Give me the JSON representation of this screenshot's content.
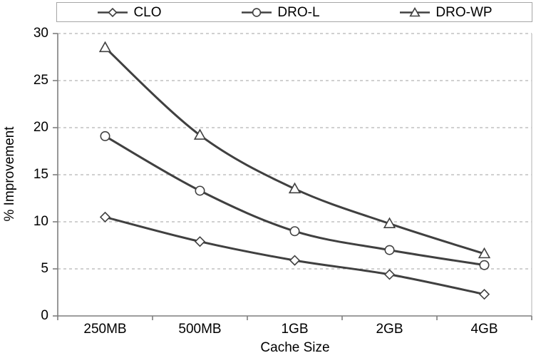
{
  "chart_data": {
    "type": "line",
    "title": "",
    "xlabel": "Cache Size",
    "ylabel": "% Improvement",
    "categories": [
      "250MB",
      "500MB",
      "1GB",
      "2GB",
      "4GB"
    ],
    "series": [
      {
        "name": "CLO",
        "marker": "diamond",
        "values": [
          10.5,
          7.9,
          5.9,
          4.4,
          2.3
        ]
      },
      {
        "name": "DRO-L",
        "marker": "circle",
        "values": [
          19.1,
          13.3,
          9.0,
          7.0,
          5.4
        ]
      },
      {
        "name": "DRO-WP",
        "marker": "triangle",
        "values": [
          28.5,
          19.2,
          13.5,
          9.8,
          6.6
        ]
      }
    ],
    "ylim": [
      0,
      30
    ],
    "yticks": [
      0,
      5,
      10,
      15,
      20,
      25,
      30
    ],
    "grid": "horizontal-dashed",
    "legend_position": "top",
    "line_smoothing": true,
    "colors": {
      "series": "#404040",
      "marker_fill": "#ffffff",
      "grid": "#b4b4b4",
      "axis": "#7f7f7f",
      "plot_right_border": "#c8c8c8",
      "text": "#000000",
      "legend_border": "#a6a6a6",
      "background": "#ffffff"
    }
  }
}
